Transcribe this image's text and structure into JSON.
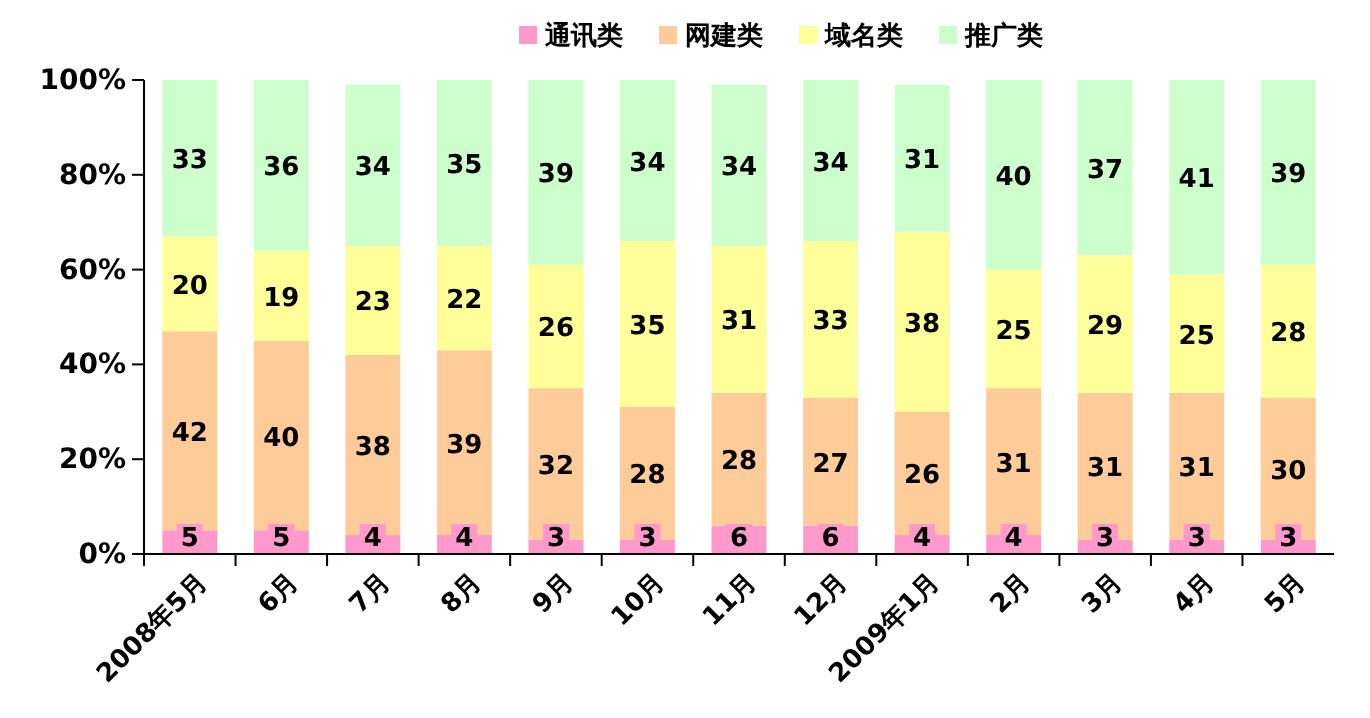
{
  "chart_data": {
    "type": "bar",
    "stacked": true,
    "data_labels": true,
    "legend": "top",
    "grid": false,
    "categories": [
      "2008年5月",
      "6月",
      "7月",
      "8月",
      "9月",
      "10月",
      "11月",
      "12月",
      "2009年1月",
      "2月",
      "3月",
      "4月",
      "5月"
    ],
    "ylim": [
      0,
      100
    ],
    "yticks": [
      {
        "value": 0,
        "label": "0%"
      },
      {
        "value": 20,
        "label": "20%"
      },
      {
        "value": 40,
        "label": "40%"
      },
      {
        "value": 60,
        "label": "60%"
      },
      {
        "value": 80,
        "label": "80%"
      },
      {
        "value": 100,
        "label": "100%"
      }
    ],
    "series": [
      {
        "name": "通讯类",
        "color": "#ff99cc",
        "values": [
          5,
          5,
          4,
          4,
          3,
          3,
          6,
          6,
          4,
          4,
          3,
          3,
          3
        ]
      },
      {
        "name": "网建类",
        "color": "#ffcc99",
        "values": [
          42,
          40,
          38,
          39,
          32,
          28,
          28,
          27,
          26,
          31,
          31,
          31,
          30
        ]
      },
      {
        "name": "域名类",
        "color": "#ffff99",
        "values": [
          20,
          19,
          23,
          22,
          26,
          35,
          31,
          33,
          38,
          25,
          29,
          25,
          28
        ]
      },
      {
        "name": "推广类",
        "color": "#ccffcc",
        "values": [
          33,
          36,
          34,
          35,
          39,
          34,
          34,
          34,
          31,
          40,
          37,
          41,
          39
        ]
      }
    ]
  }
}
